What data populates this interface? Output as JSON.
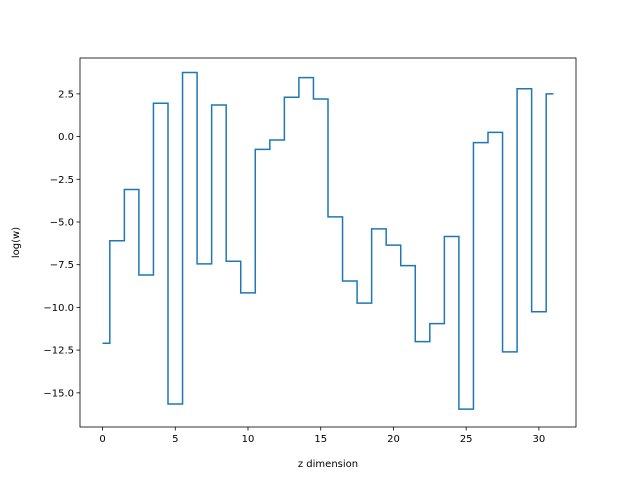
{
  "chart_data": {
    "type": "line",
    "drawstyle": "steps-mid",
    "title": "",
    "xlabel": "z dimension",
    "ylabel": "log(w)",
    "xlim": [
      -1.55,
      32.55
    ],
    "ylim": [
      -17.0,
      4.6
    ],
    "x_ticks": [
      0,
      5,
      10,
      15,
      20,
      25,
      30
    ],
    "x_tick_labels": [
      "0",
      "5",
      "10",
      "15",
      "20",
      "25",
      "30"
    ],
    "y_ticks": [
      -15.0,
      -12.5,
      -10.0,
      -7.5,
      -5.0,
      -2.5,
      0.0,
      2.5
    ],
    "y_tick_labels": [
      "−15.0",
      "−12.5",
      "−10.0",
      "−7.5",
      "−5.0",
      "−2.5",
      "0.0",
      "2.5"
    ],
    "grid": false,
    "colors": {
      "line": "#1f77b4",
      "axes": "#000000",
      "background": "#ffffff"
    },
    "series": [
      {
        "x": [
          0,
          1,
          2,
          3,
          4,
          5,
          6,
          7,
          8,
          9,
          10,
          11,
          12,
          13,
          14,
          15,
          16,
          17,
          18,
          19,
          20,
          21,
          22,
          23,
          24,
          25,
          26,
          27,
          28,
          29,
          30,
          31
        ],
        "values": [
          -12.1,
          -6.1,
          -3.1,
          -8.1,
          1.95,
          -15.65,
          3.75,
          -7.45,
          1.85,
          -7.3,
          -9.15,
          -0.75,
          -0.2,
          2.3,
          3.45,
          2.2,
          -4.7,
          -8.45,
          -9.75,
          -5.4,
          -6.35,
          -7.55,
          -12.0,
          -10.95,
          -5.85,
          -15.95,
          -0.35,
          0.25,
          -12.6,
          2.8,
          -10.25,
          2.5
        ]
      }
    ]
  }
}
